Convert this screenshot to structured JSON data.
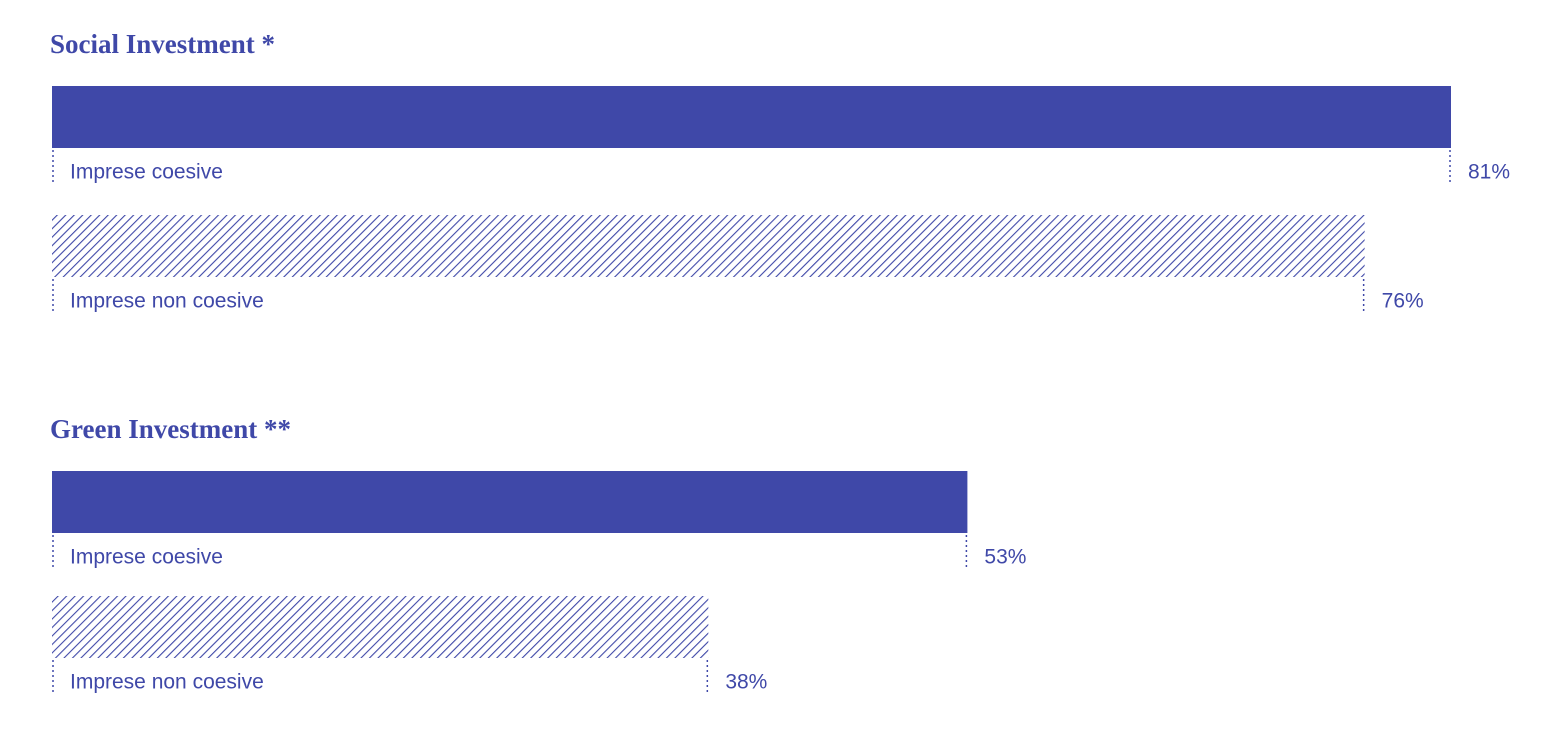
{
  "chart_data": [
    {
      "type": "bar",
      "title": "Social Investment *",
      "categories": [
        "Imprese coesive",
        "Imprese non coesive"
      ],
      "values": [
        81,
        76
      ],
      "value_labels": [
        "81%",
        "76%"
      ],
      "color": "#3f48a8",
      "patterns": [
        "solid",
        "hatched"
      ],
      "xlim": [
        0,
        81
      ]
    },
    {
      "type": "bar",
      "title": "Green Investment **",
      "categories": [
        "Imprese coesive",
        "Imprese non coesive"
      ],
      "values": [
        53,
        38
      ],
      "value_labels": [
        "53%",
        "38%"
      ],
      "color": "#3f48a8",
      "patterns": [
        "solid",
        "hatched"
      ],
      "xlim": [
        0,
        81
      ]
    }
  ]
}
